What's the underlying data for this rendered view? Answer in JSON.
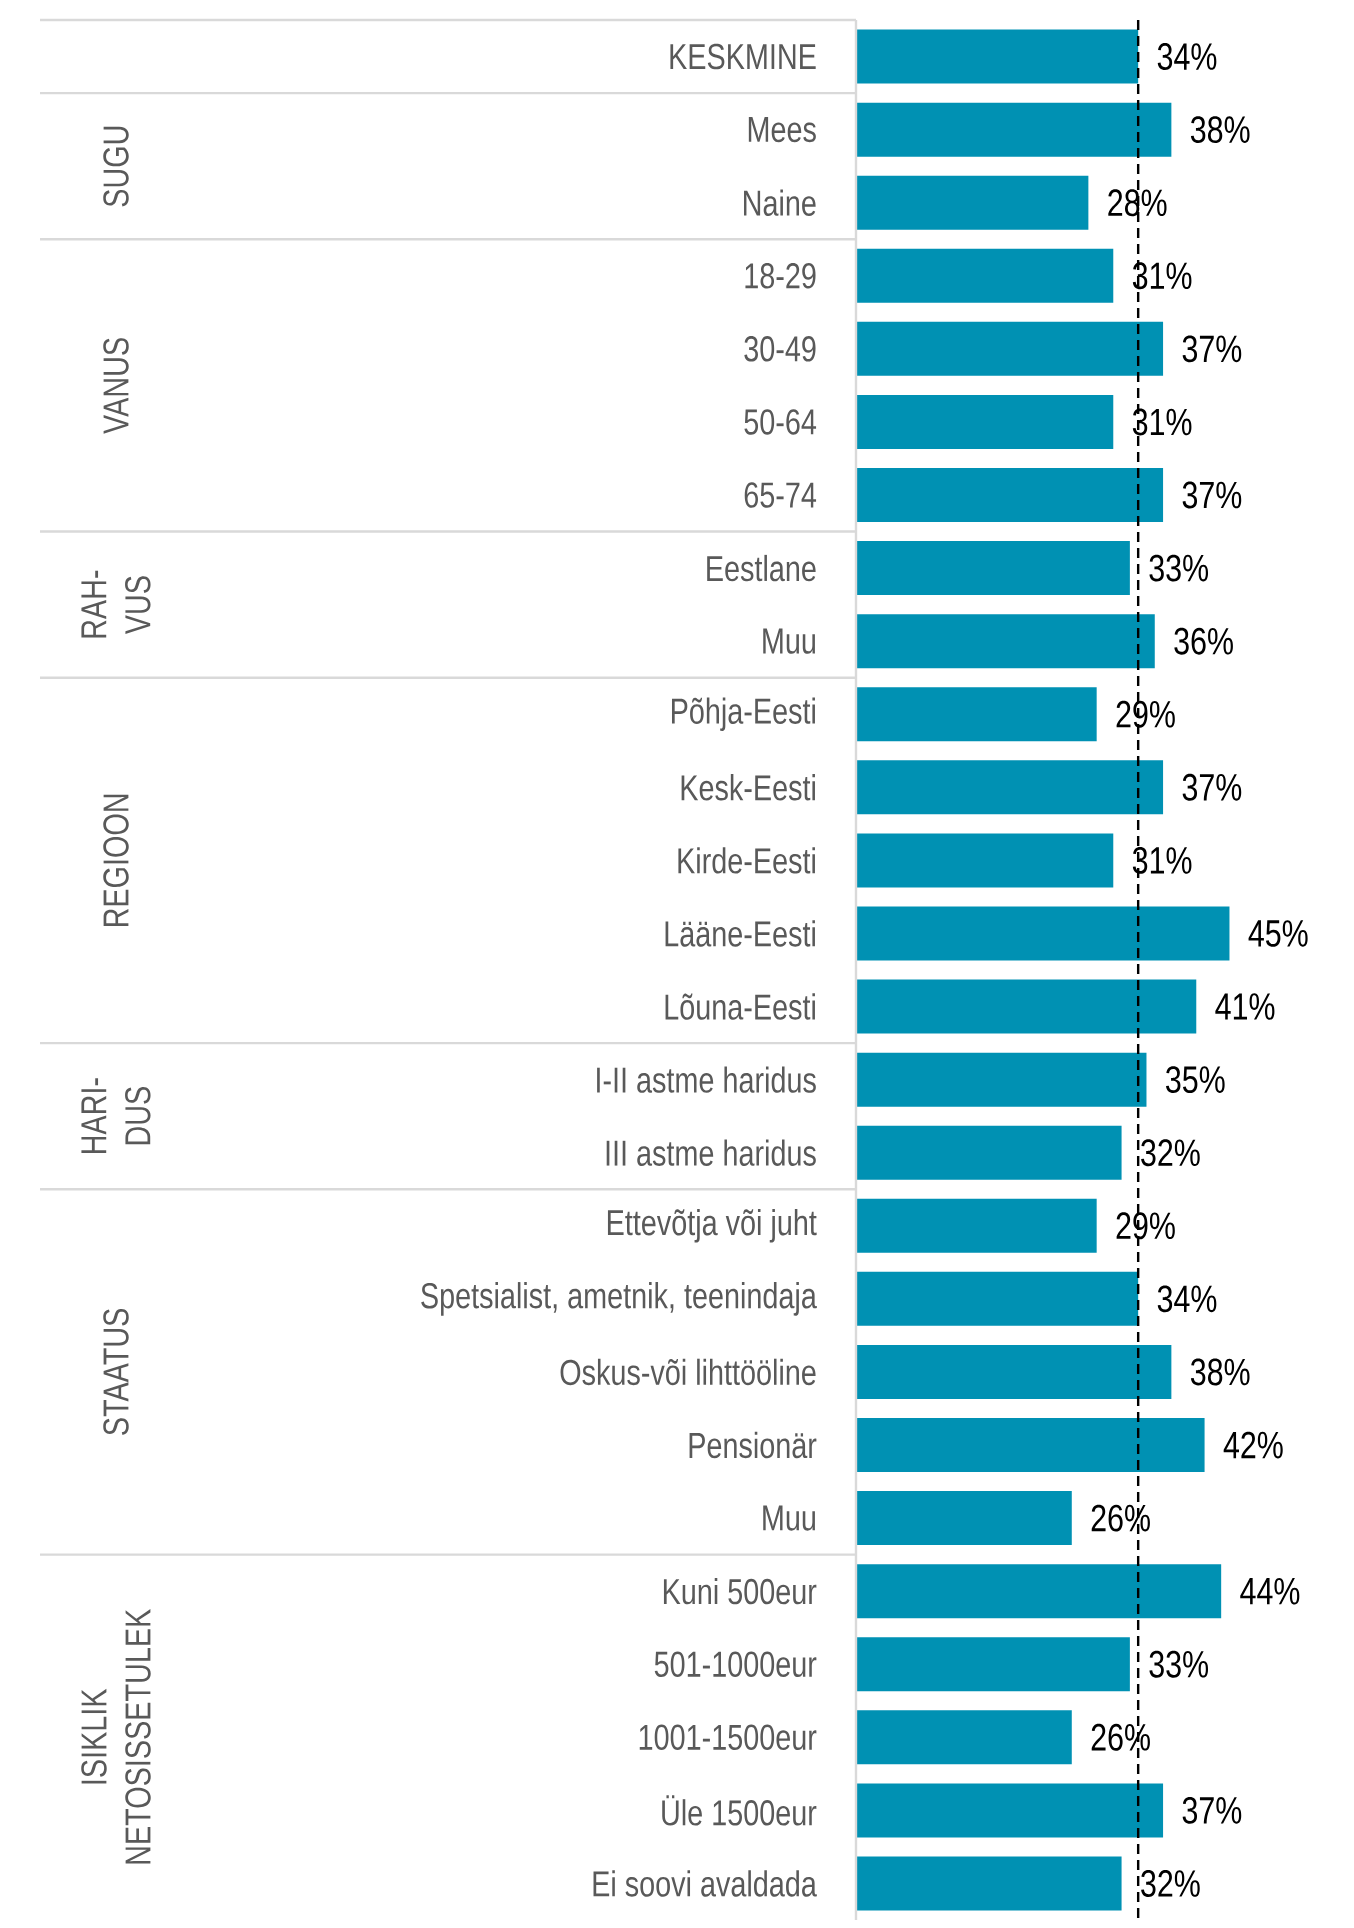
{
  "chart_data": {
    "type": "bar",
    "orientation": "horizontal",
    "categories": [
      "KESKMINE",
      "Mees",
      "Naine",
      "18-29",
      "30-49",
      "50-64",
      "65-74",
      "Eestlane",
      "Muu",
      "Põhja-Eesti",
      "Kesk-Eesti",
      "Kirde-Eesti",
      "Lääne-Eesti",
      "Lõuna-Eesti",
      "I-II astme haridus",
      "III astme haridus",
      "Ettevõtja või juht",
      "Spetsialist, ametnik, teenindaja",
      "Oskus-või lihttööline",
      "Pensionär",
      "Muu",
      "Kuni 500eur",
      "501-1000eur",
      "1001-1500eur",
      "Üle 1500eur",
      "Ei soovi avaldada"
    ],
    "values": [
      34,
      38,
      28,
      31,
      37,
      31,
      37,
      33,
      36,
      29,
      37,
      31,
      45,
      41,
      35,
      32,
      29,
      34,
      38,
      42,
      26,
      44,
      33,
      26,
      37,
      32
    ],
    "value_labels": [
      "34%",
      "38%",
      "28%",
      "31%",
      "37%",
      "31%",
      "37%",
      "33%",
      "36%",
      "29%",
      "37%",
      "31%",
      "45%",
      "41%",
      "35%",
      "32%",
      "29%",
      "34%",
      "38%",
      "42%",
      "26%",
      "44%",
      "33%",
      "26%",
      "37%",
      "32%"
    ],
    "color": "#0091b3",
    "ref_lines": [
      {
        "axis": "x",
        "value": 34,
        "color": "#000000",
        "line_style": "dashed"
      }
    ],
    "annotations": [
      "SUGU",
      "VANUS",
      "RAH- VUS",
      "REGIOON",
      "HARI- DUS",
      "STAATUS",
      "ISIKLIK NETOSISSETULEK"
    ]
  }
}
